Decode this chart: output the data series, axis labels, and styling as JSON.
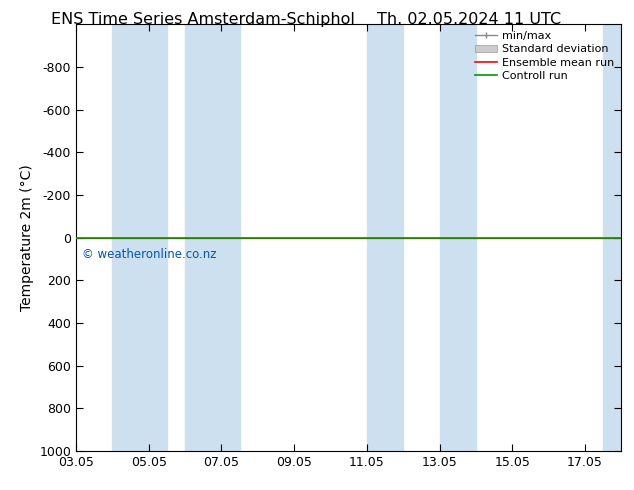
{
  "title_left": "ENS Time Series Amsterdam-Schiphol",
  "title_right": "Th. 02.05.2024 11 UTC",
  "ylabel": "Temperature 2m (°C)",
  "ylim_top": -1000,
  "ylim_bottom": 1000,
  "yticks": [
    -800,
    -600,
    -400,
    -200,
    0,
    200,
    400,
    600,
    800,
    1000
  ],
  "xlim_start": 0,
  "xlim_end": 15,
  "xtick_labels": [
    "03.05",
    "05.05",
    "07.05",
    "09.05",
    "11.05",
    "13.05",
    "15.05",
    "17.05"
  ],
  "xtick_positions": [
    0,
    2,
    4,
    6,
    8,
    10,
    12,
    14
  ],
  "blue_bands": [
    [
      1.0,
      2.5
    ],
    [
      3.0,
      4.5
    ],
    [
      8.0,
      9.0
    ],
    [
      10.0,
      11.0
    ],
    [
      14.5,
      15.0
    ]
  ],
  "blue_band_color": "#cce0f0",
  "green_line_y": 0,
  "green_line_color": "#009900",
  "red_line_color": "#ff0000",
  "watermark": "© weatheronline.co.nz",
  "watermark_color": "#0055bb",
  "legend_items": [
    "min/max",
    "Standard deviation",
    "Ensemble mean run",
    "Controll run"
  ],
  "background_color": "#ffffff",
  "title_fontsize": 11.5,
  "axis_label_fontsize": 10,
  "tick_fontsize": 9,
  "legend_fontsize": 8
}
